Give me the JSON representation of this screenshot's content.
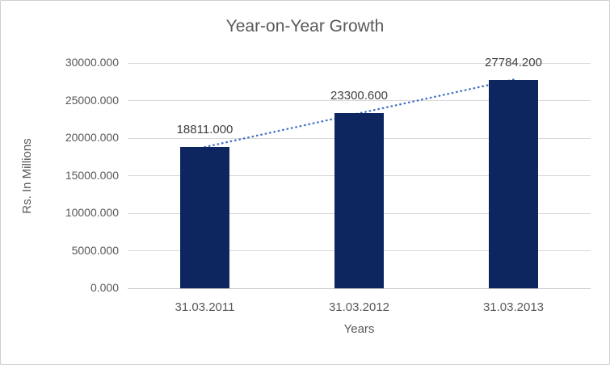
{
  "chart_data": {
    "type": "bar",
    "title": "Year-on-Year Growth",
    "xlabel": "Years",
    "ylabel": "Rs. In Millions",
    "categories": [
      "31.03.2011",
      "31.03.2012",
      "31.03.2013"
    ],
    "values": [
      18811.0,
      23300.6,
      27784.2
    ],
    "data_labels": [
      "18811.000",
      "23300.600",
      "27784.200"
    ],
    "yticks": [
      30000,
      25000,
      20000,
      15000,
      10000,
      5000,
      0
    ],
    "ytick_labels": [
      "30000.000",
      "25000.000",
      "20000.000",
      "15000.000",
      "10000.000",
      "5000.000",
      "0.000"
    ],
    "ylim": [
      0,
      30000
    ],
    "grid": "horizontal",
    "legend": "none",
    "trendline": {
      "type": "linear",
      "style": "dotted"
    },
    "colors": {
      "bar": "#0e2660",
      "trendline": "#4472c4",
      "gridline": "#d9d9d9",
      "axis_line": "#c6c6c6",
      "title_text": "#595959",
      "tick_text": "#595959",
      "data_label_text": "#404040",
      "border": "#cfcfcf",
      "background": "#ffffff"
    }
  }
}
